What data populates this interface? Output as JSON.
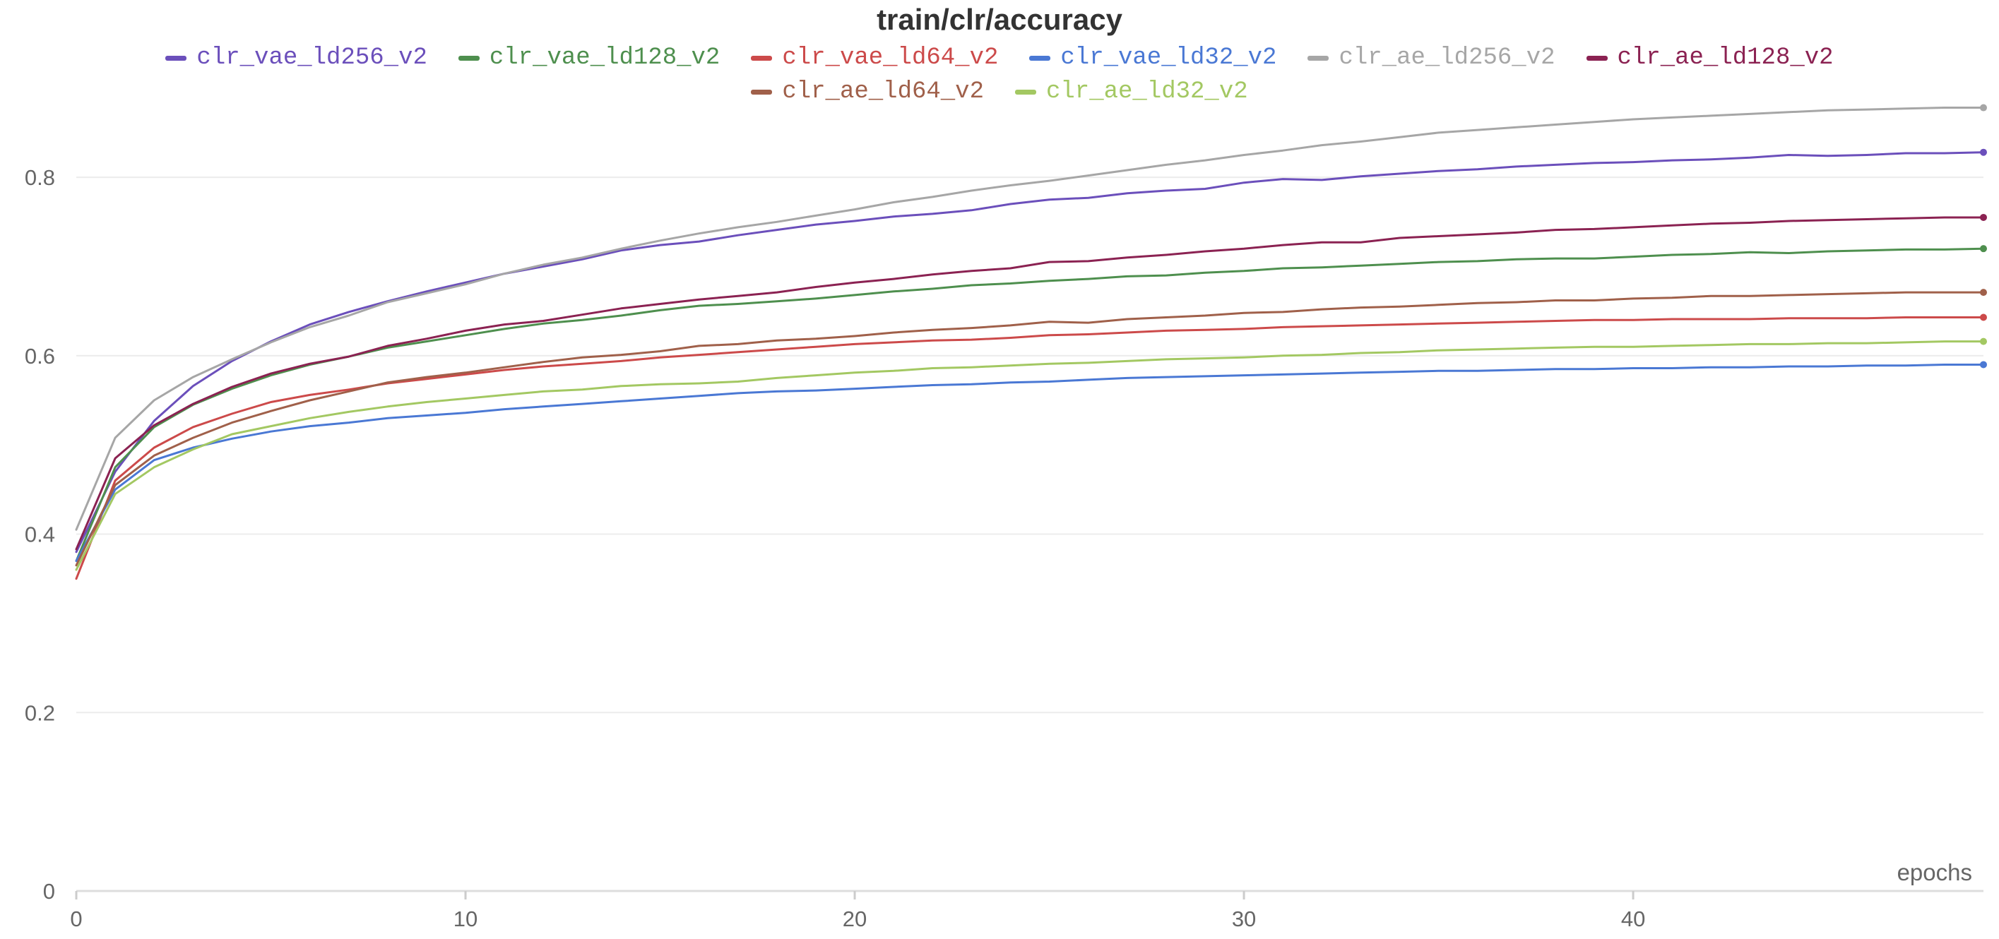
{
  "chart_data": {
    "type": "line",
    "title": "train/clr/accuracy",
    "xlabel": "epochs",
    "ylabel": "",
    "xlim": [
      0,
      49
    ],
    "ylim": [
      0,
      0.88
    ],
    "xticks": [
      0,
      10,
      20,
      30,
      40
    ],
    "yticks": [
      0,
      0.2,
      0.4,
      0.6,
      0.8
    ],
    "xtick_labels": [
      "0",
      "10",
      "20",
      "30",
      "40"
    ],
    "ytick_labels": [
      "0",
      "0.2",
      "0.4",
      "0.6",
      "0.8"
    ],
    "grid": "horizontal",
    "legend": "top-center",
    "x": [
      0,
      1,
      2,
      3,
      4,
      5,
      6,
      7,
      8,
      9,
      10,
      11,
      12,
      13,
      14,
      15,
      16,
      17,
      18,
      19,
      20,
      21,
      22,
      23,
      24,
      25,
      26,
      27,
      28,
      29,
      30,
      31,
      32,
      33,
      34,
      35,
      36,
      37,
      38,
      39,
      40,
      41,
      42,
      43,
      44,
      45,
      46,
      47,
      48,
      49
    ],
    "series": [
      {
        "name": "clr_vae_ld256_v2",
        "color": "#6b4fbb",
        "values": [
          0.38,
          0.47,
          0.527,
          0.566,
          0.594,
          0.616,
          0.635,
          0.649,
          0.661,
          0.672,
          0.682,
          0.692,
          0.7,
          0.708,
          0.718,
          0.724,
          0.728,
          0.735,
          0.741,
          0.747,
          0.751,
          0.756,
          0.759,
          0.763,
          0.77,
          0.775,
          0.777,
          0.782,
          0.785,
          0.787,
          0.794,
          0.798,
          0.797,
          0.801,
          0.804,
          0.807,
          0.809,
          0.812,
          0.814,
          0.816,
          0.817,
          0.819,
          0.82,
          0.822,
          0.825,
          0.824,
          0.825,
          0.827,
          0.827,
          0.828
        ]
      },
      {
        "name": "clr_vae_ld128_v2",
        "color": "#4e8f4e",
        "values": [
          0.37,
          0.475,
          0.52,
          0.545,
          0.563,
          0.578,
          0.59,
          0.599,
          0.609,
          0.616,
          0.623,
          0.63,
          0.636,
          0.64,
          0.645,
          0.651,
          0.656,
          0.658,
          0.661,
          0.664,
          0.668,
          0.672,
          0.675,
          0.679,
          0.681,
          0.684,
          0.686,
          0.689,
          0.69,
          0.693,
          0.695,
          0.698,
          0.699,
          0.701,
          0.703,
          0.705,
          0.706,
          0.708,
          0.709,
          0.709,
          0.711,
          0.713,
          0.714,
          0.716,
          0.715,
          0.717,
          0.718,
          0.719,
          0.719,
          0.72
        ]
      },
      {
        "name": "clr_vae_ld64_v2",
        "color": "#cc4a4a",
        "values": [
          0.35,
          0.46,
          0.497,
          0.52,
          0.535,
          0.548,
          0.556,
          0.562,
          0.569,
          0.574,
          0.579,
          0.584,
          0.588,
          0.591,
          0.594,
          0.598,
          0.601,
          0.604,
          0.607,
          0.61,
          0.613,
          0.615,
          0.617,
          0.618,
          0.62,
          0.623,
          0.624,
          0.626,
          0.628,
          0.629,
          0.63,
          0.632,
          0.633,
          0.634,
          0.635,
          0.636,
          0.637,
          0.638,
          0.639,
          0.64,
          0.64,
          0.641,
          0.641,
          0.641,
          0.642,
          0.642,
          0.642,
          0.643,
          0.643,
          0.643
        ]
      },
      {
        "name": "clr_vae_ld32_v2",
        "color": "#4a78d4",
        "values": [
          0.37,
          0.45,
          0.483,
          0.497,
          0.507,
          0.515,
          0.521,
          0.525,
          0.53,
          0.533,
          0.536,
          0.54,
          0.543,
          0.546,
          0.549,
          0.552,
          0.555,
          0.558,
          0.56,
          0.561,
          0.563,
          0.565,
          0.567,
          0.568,
          0.57,
          0.571,
          0.573,
          0.575,
          0.576,
          0.577,
          0.578,
          0.579,
          0.58,
          0.581,
          0.582,
          0.583,
          0.583,
          0.584,
          0.585,
          0.585,
          0.586,
          0.586,
          0.587,
          0.587,
          0.588,
          0.588,
          0.589,
          0.589,
          0.59,
          0.59
        ]
      },
      {
        "name": "clr_ae_ld256_v2",
        "color": "#a6a6a6",
        "values": [
          0.405,
          0.508,
          0.55,
          0.576,
          0.596,
          0.615,
          0.632,
          0.645,
          0.66,
          0.67,
          0.68,
          0.692,
          0.702,
          0.71,
          0.72,
          0.729,
          0.737,
          0.744,
          0.75,
          0.757,
          0.764,
          0.772,
          0.778,
          0.785,
          0.791,
          0.796,
          0.802,
          0.808,
          0.814,
          0.819,
          0.825,
          0.83,
          0.836,
          0.84,
          0.845,
          0.85,
          0.853,
          0.856,
          0.859,
          0.862,
          0.865,
          0.867,
          0.869,
          0.871,
          0.873,
          0.875,
          0.876,
          0.877,
          0.878,
          0.878
        ]
      },
      {
        "name": "clr_ae_ld128_v2",
        "color": "#8b2252",
        "values": [
          0.383,
          0.485,
          0.522,
          0.546,
          0.565,
          0.58,
          0.591,
          0.599,
          0.611,
          0.619,
          0.628,
          0.635,
          0.639,
          0.646,
          0.653,
          0.658,
          0.663,
          0.667,
          0.671,
          0.677,
          0.682,
          0.686,
          0.691,
          0.695,
          0.698,
          0.705,
          0.706,
          0.71,
          0.713,
          0.717,
          0.72,
          0.724,
          0.727,
          0.727,
          0.732,
          0.734,
          0.736,
          0.738,
          0.741,
          0.742,
          0.744,
          0.746,
          0.748,
          0.749,
          0.751,
          0.752,
          0.753,
          0.754,
          0.755,
          0.755
        ]
      },
      {
        "name": "clr_ae_ld64_v2",
        "color": "#a0604a",
        "values": [
          0.365,
          0.455,
          0.488,
          0.508,
          0.525,
          0.538,
          0.55,
          0.56,
          0.57,
          0.576,
          0.581,
          0.587,
          0.593,
          0.598,
          0.601,
          0.605,
          0.611,
          0.613,
          0.617,
          0.619,
          0.622,
          0.626,
          0.629,
          0.631,
          0.634,
          0.638,
          0.637,
          0.641,
          0.643,
          0.645,
          0.648,
          0.649,
          0.652,
          0.654,
          0.655,
          0.657,
          0.659,
          0.66,
          0.662,
          0.662,
          0.664,
          0.665,
          0.667,
          0.667,
          0.668,
          0.669,
          0.67,
          0.671,
          0.671,
          0.671
        ]
      },
      {
        "name": "clr_ae_ld32_v2",
        "color": "#a3c862",
        "values": [
          0.36,
          0.445,
          0.475,
          0.495,
          0.512,
          0.521,
          0.53,
          0.537,
          0.543,
          0.548,
          0.552,
          0.556,
          0.56,
          0.562,
          0.566,
          0.568,
          0.569,
          0.571,
          0.575,
          0.578,
          0.581,
          0.583,
          0.586,
          0.587,
          0.589,
          0.591,
          0.592,
          0.594,
          0.596,
          0.597,
          0.598,
          0.6,
          0.601,
          0.603,
          0.604,
          0.606,
          0.607,
          0.608,
          0.609,
          0.61,
          0.61,
          0.611,
          0.612,
          0.613,
          0.613,
          0.614,
          0.614,
          0.615,
          0.616,
          0.616
        ]
      }
    ]
  }
}
